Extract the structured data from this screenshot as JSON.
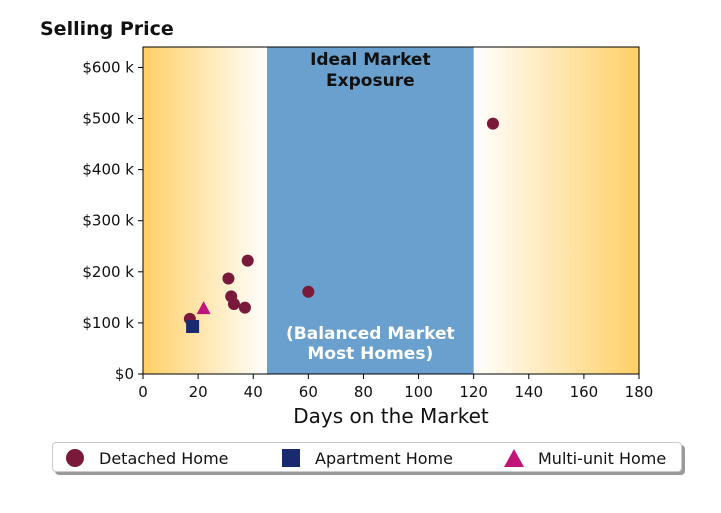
{
  "chart_data": {
    "type": "scatter",
    "ylabel_top": "Selling Price",
    "xlabel": "Days on the Market",
    "xlim": [
      0,
      180
    ],
    "ylim": [
      0,
      640000
    ],
    "x_ticks": [
      0,
      20,
      40,
      60,
      80,
      100,
      120,
      140,
      160,
      180
    ],
    "y_ticks": [
      {
        "value": 0,
        "label": "$0"
      },
      {
        "value": 100000,
        "label": "$100 k"
      },
      {
        "value": 200000,
        "label": "$200 k"
      },
      {
        "value": 300000,
        "label": "$300 k"
      },
      {
        "value": 400000,
        "label": "$400 k"
      },
      {
        "value": 500000,
        "label": "$500 k"
      },
      {
        "value": 600000,
        "label": "$600 k"
      }
    ],
    "band": {
      "x_range": [
        45,
        120
      ],
      "color": "#6aa0cd",
      "label_top": [
        "Ideal Market",
        "Exposure"
      ],
      "label_bottom": [
        "(Balanced Market",
        "Most Homes)"
      ]
    },
    "outer_color": "#ffcf66",
    "series": [
      {
        "name": "Detached Home",
        "marker": "circle",
        "color": "#7a1a3a",
        "points": [
          [
            17,
            108000
          ],
          [
            31,
            187000
          ],
          [
            32,
            152000
          ],
          [
            33,
            137000
          ],
          [
            37,
            130000
          ],
          [
            38,
            222000
          ],
          [
            60,
            161000
          ],
          [
            127,
            490000
          ]
        ]
      },
      {
        "name": "Apartment Home",
        "marker": "square",
        "color": "#1a2a6e",
        "points": [
          [
            18,
            93000
          ]
        ]
      },
      {
        "name": "Multi-unit Home",
        "marker": "triangle",
        "color": "#c0157a",
        "points": [
          [
            22,
            127000
          ]
        ]
      }
    ],
    "legend_position": "bottom"
  }
}
